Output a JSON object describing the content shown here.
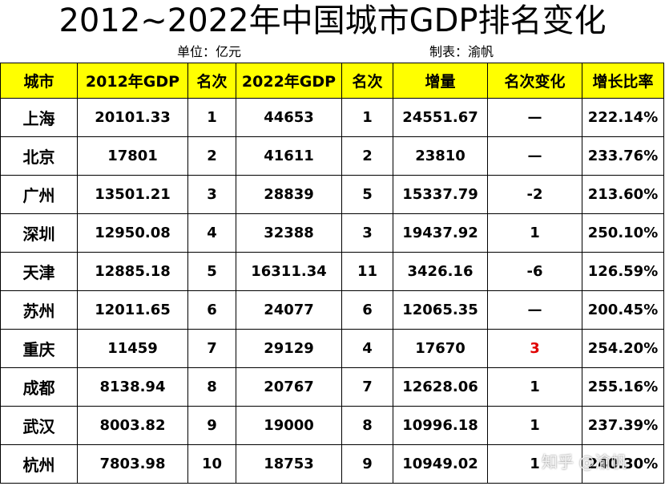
{
  "title": "2012~2022年中国城市GDP排名变化",
  "unit": "单位：亿元",
  "maker": "制表：渝帆",
  "headers": [
    "城市",
    "2012年GDP",
    "名次",
    "2022年GDP",
    "名次",
    "增量",
    "名次变化",
    "增长比率"
  ],
  "rows": [
    {
      "city": "上海",
      "gdp2012": "20101.33",
      "rank2012": "1",
      "gdp2022": "44653",
      "rank2022": "1",
      "increase": "24551.67",
      "change": "—",
      "growth": "222.14%"
    },
    {
      "city": "北京",
      "gdp2012": "17801",
      "rank2012": "2",
      "gdp2022": "41611",
      "rank2022": "2",
      "increase": "23810",
      "change": "—",
      "growth": "233.76%"
    },
    {
      "city": "广州",
      "gdp2012": "13501.21",
      "rank2012": "3",
      "gdp2022": "28839",
      "rank2022": "5",
      "increase": "15337.79",
      "change": "-2",
      "growth": "213.60%"
    },
    {
      "city": "深圳",
      "gdp2012": "12950.08",
      "rank2012": "4",
      "gdp2022": "32388",
      "rank2022": "3",
      "increase": "19437.92",
      "change": "1",
      "growth": "250.10%"
    },
    {
      "city": "天津",
      "gdp2012": "12885.18",
      "rank2012": "5",
      "gdp2022": "16311.34",
      "rank2022": "11",
      "increase": "3426.16",
      "change": "-6",
      "growth": "126.59%"
    },
    {
      "city": "苏州",
      "gdp2012": "12011.65",
      "rank2012": "6",
      "gdp2022": "24077",
      "rank2022": "6",
      "increase": "12065.35",
      "change": "—",
      "growth": "200.45%"
    },
    {
      "city": "重庆",
      "gdp2012": "11459",
      "rank2012": "7",
      "gdp2022": "29129",
      "rank2022": "4",
      "increase": "17670",
      "change": "3",
      "growth": "254.20%",
      "highlight": true
    },
    {
      "city": "成都",
      "gdp2012": "8138.94",
      "rank2012": "8",
      "gdp2022": "20767",
      "rank2022": "7",
      "increase": "12628.06",
      "change": "1",
      "growth": "255.16%"
    },
    {
      "city": "武汉",
      "gdp2012": "8003.82",
      "rank2012": "9",
      "gdp2022": "19000",
      "rank2022": "8",
      "increase": "10996.18",
      "change": "1",
      "growth": "237.39%"
    },
    {
      "city": "杭州",
      "gdp2012": "7803.98",
      "rank2012": "10",
      "gdp2022": "18753",
      "rank2022": "9",
      "increase": "10949.02",
      "change": "1",
      "growth": "240.30%"
    }
  ],
  "watermark": "知乎 @渝帆",
  "colors": {
    "header_bg": "#ffff00",
    "highlight_text": "#e00000"
  }
}
